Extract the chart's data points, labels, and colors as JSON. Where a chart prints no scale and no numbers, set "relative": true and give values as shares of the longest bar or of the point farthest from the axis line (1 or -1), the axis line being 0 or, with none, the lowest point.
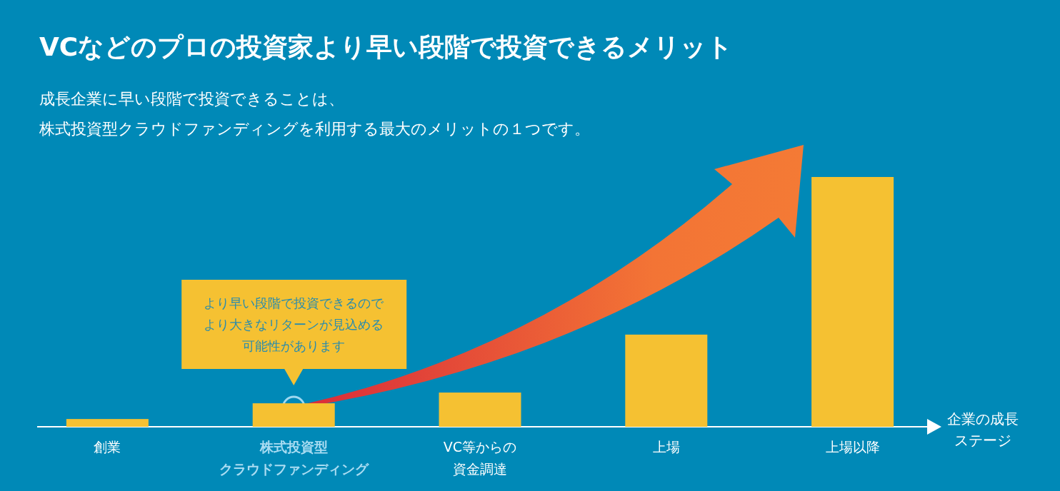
{
  "chart_data": {
    "type": "bar",
    "relative": true,
    "title": "VCなどのプロの投資家より早い段階で投資できるメリット",
    "subtitle": "成長企業に早い段階で投資できることは、株式投資型クラウドファンディングを利用する最大のメリットの１つです。",
    "xlabel": "企業の成長ステージ",
    "categories": [
      "創業",
      "株式投資型クラウドファンディング",
      "VC等からの資金調達",
      "上場",
      "上場以降"
    ],
    "values": [
      0.031,
      0.094,
      0.137,
      0.369,
      1
    ],
    "color": "#f5c132",
    "annotations": [
      "より早い段階で投資できるのでより大きなリターンが見込める可能性があります"
    ]
  }
}
